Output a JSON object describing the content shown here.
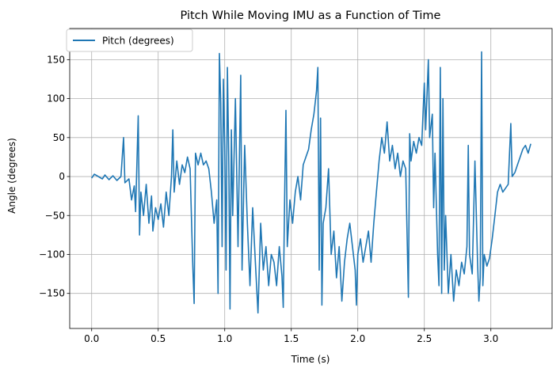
{
  "chart_data": {
    "type": "line",
    "title": "Pitch While Moving IMU as a Function of Time",
    "xlabel": "Time (s)",
    "ylabel": "Angle (degrees)",
    "xlim": [
      -0.165,
      3.46
    ],
    "ylim": [
      -195,
      190
    ],
    "x_ticks": [
      0.0,
      0.5,
      1.0,
      1.5,
      2.0,
      2.5,
      3.0
    ],
    "x_tick_labels": [
      "0.0",
      "0.5",
      "1.0",
      "1.5",
      "2.0",
      "2.5",
      "3.0"
    ],
    "y_ticks": [
      -150,
      -100,
      -50,
      0,
      50,
      100,
      150
    ],
    "y_tick_labels": [
      "−150",
      "−100",
      "−50",
      "0",
      "50",
      "100",
      "150"
    ],
    "grid": true,
    "legend_position": "top-left",
    "series": [
      {
        "name": "Pitch (degrees)",
        "color": "#1f77b4",
        "points": [
          [
            0.0,
            -2
          ],
          [
            0.02,
            3
          ],
          [
            0.05,
            0
          ],
          [
            0.08,
            -3
          ],
          [
            0.1,
            2
          ],
          [
            0.13,
            -4
          ],
          [
            0.16,
            1
          ],
          [
            0.19,
            -5
          ],
          [
            0.22,
            0
          ],
          [
            0.24,
            50
          ],
          [
            0.25,
            -8
          ],
          [
            0.28,
            -3
          ],
          [
            0.3,
            -30
          ],
          [
            0.32,
            -12
          ],
          [
            0.33,
            -45
          ],
          [
            0.35,
            78
          ],
          [
            0.36,
            -75
          ],
          [
            0.37,
            -20
          ],
          [
            0.39,
            -50
          ],
          [
            0.41,
            -10
          ],
          [
            0.43,
            -60
          ],
          [
            0.45,
            -25
          ],
          [
            0.46,
            -70
          ],
          [
            0.48,
            -40
          ],
          [
            0.5,
            -55
          ],
          [
            0.52,
            -35
          ],
          [
            0.54,
            -65
          ],
          [
            0.56,
            -20
          ],
          [
            0.58,
            -50
          ],
          [
            0.6,
            0
          ],
          [
            0.61,
            60
          ],
          [
            0.62,
            -20
          ],
          [
            0.64,
            20
          ],
          [
            0.66,
            -10
          ],
          [
            0.68,
            15
          ],
          [
            0.7,
            5
          ],
          [
            0.72,
            25
          ],
          [
            0.74,
            10
          ],
          [
            0.76,
            -115
          ],
          [
            0.77,
            -163
          ],
          [
            0.78,
            30
          ],
          [
            0.8,
            15
          ],
          [
            0.82,
            30
          ],
          [
            0.84,
            15
          ],
          [
            0.86,
            20
          ],
          [
            0.88,
            10
          ],
          [
            0.9,
            -20
          ],
          [
            0.92,
            -60
          ],
          [
            0.94,
            -30
          ],
          [
            0.95,
            -150
          ],
          [
            0.96,
            158
          ],
          [
            0.97,
            95
          ],
          [
            0.98,
            -90
          ],
          [
            0.99,
            125
          ],
          [
            1.0,
            40
          ],
          [
            1.01,
            -120
          ],
          [
            1.02,
            140
          ],
          [
            1.03,
            25
          ],
          [
            1.04,
            -170
          ],
          [
            1.05,
            60
          ],
          [
            1.06,
            -50
          ],
          [
            1.08,
            100
          ],
          [
            1.1,
            -90
          ],
          [
            1.12,
            130
          ],
          [
            1.13,
            -120
          ],
          [
            1.15,
            40
          ],
          [
            1.17,
            -60
          ],
          [
            1.19,
            -140
          ],
          [
            1.21,
            -40
          ],
          [
            1.23,
            -110
          ],
          [
            1.25,
            -175
          ],
          [
            1.27,
            -60
          ],
          [
            1.29,
            -120
          ],
          [
            1.31,
            -90
          ],
          [
            1.33,
            -140
          ],
          [
            1.35,
            -100
          ],
          [
            1.37,
            -110
          ],
          [
            1.39,
            -140
          ],
          [
            1.41,
            -90
          ],
          [
            1.43,
            -128
          ],
          [
            1.44,
            -168
          ],
          [
            1.45,
            -30
          ],
          [
            1.46,
            85
          ],
          [
            1.47,
            -90
          ],
          [
            1.49,
            -30
          ],
          [
            1.51,
            -60
          ],
          [
            1.53,
            -20
          ],
          [
            1.55,
            0
          ],
          [
            1.57,
            -30
          ],
          [
            1.59,
            15
          ],
          [
            1.61,
            25
          ],
          [
            1.63,
            35
          ],
          [
            1.65,
            60
          ],
          [
            1.67,
            80
          ],
          [
            1.69,
            110
          ],
          [
            1.7,
            140
          ],
          [
            1.71,
            -120
          ],
          [
            1.72,
            75
          ],
          [
            1.73,
            -165
          ],
          [
            1.74,
            -60
          ],
          [
            1.76,
            -40
          ],
          [
            1.78,
            10
          ],
          [
            1.8,
            -100
          ],
          [
            1.82,
            -70
          ],
          [
            1.84,
            -130
          ],
          [
            1.86,
            -90
          ],
          [
            1.88,
            -160
          ],
          [
            1.9,
            -110
          ],
          [
            1.92,
            -80
          ],
          [
            1.94,
            -60
          ],
          [
            1.96,
            -90
          ],
          [
            1.98,
            -120
          ],
          [
            1.99,
            -165
          ],
          [
            2.0,
            -100
          ],
          [
            2.02,
            -80
          ],
          [
            2.04,
            -110
          ],
          [
            2.06,
            -90
          ],
          [
            2.08,
            -70
          ],
          [
            2.1,
            -110
          ],
          [
            2.12,
            -60
          ],
          [
            2.14,
            -20
          ],
          [
            2.16,
            20
          ],
          [
            2.18,
            50
          ],
          [
            2.2,
            30
          ],
          [
            2.22,
            70
          ],
          [
            2.24,
            20
          ],
          [
            2.26,
            40
          ],
          [
            2.28,
            10
          ],
          [
            2.3,
            30
          ],
          [
            2.32,
            0
          ],
          [
            2.34,
            20
          ],
          [
            2.36,
            10
          ],
          [
            2.38,
            -155
          ],
          [
            2.39,
            55
          ],
          [
            2.4,
            20
          ],
          [
            2.42,
            45
          ],
          [
            2.44,
            30
          ],
          [
            2.46,
            50
          ],
          [
            2.48,
            40
          ],
          [
            2.5,
            120
          ],
          [
            2.51,
            60
          ],
          [
            2.53,
            150
          ],
          [
            2.54,
            50
          ],
          [
            2.56,
            80
          ],
          [
            2.57,
            -40
          ],
          [
            2.58,
            30
          ],
          [
            2.6,
            -100
          ],
          [
            2.61,
            -140
          ],
          [
            2.62,
            140
          ],
          [
            2.63,
            -150
          ],
          [
            2.64,
            100
          ],
          [
            2.65,
            -120
          ],
          [
            2.66,
            -50
          ],
          [
            2.68,
            -150
          ],
          [
            2.7,
            -100
          ],
          [
            2.72,
            -160
          ],
          [
            2.74,
            -120
          ],
          [
            2.76,
            -140
          ],
          [
            2.78,
            -110
          ],
          [
            2.8,
            -125
          ],
          [
            2.82,
            -90
          ],
          [
            2.83,
            40
          ],
          [
            2.84,
            -100
          ],
          [
            2.86,
            -125
          ],
          [
            2.88,
            20
          ],
          [
            2.9,
            -110
          ],
          [
            2.91,
            -160
          ],
          [
            2.92,
            -130
          ],
          [
            2.93,
            160
          ],
          [
            2.94,
            -140
          ],
          [
            2.95,
            -100
          ],
          [
            2.97,
            -115
          ],
          [
            2.99,
            -105
          ],
          [
            3.01,
            -80
          ],
          [
            3.03,
            -50
          ],
          [
            3.05,
            -20
          ],
          [
            3.07,
            -10
          ],
          [
            3.09,
            -20
          ],
          [
            3.11,
            -15
          ],
          [
            3.13,
            -10
          ],
          [
            3.15,
            68
          ],
          [
            3.16,
            0
          ],
          [
            3.18,
            5
          ],
          [
            3.2,
            15
          ],
          [
            3.22,
            25
          ],
          [
            3.24,
            35
          ],
          [
            3.26,
            40
          ],
          [
            3.28,
            30
          ],
          [
            3.3,
            42
          ]
        ]
      }
    ]
  }
}
